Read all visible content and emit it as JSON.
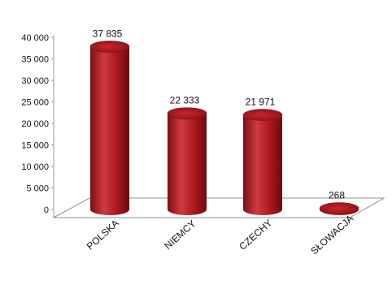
{
  "chart_data": {
    "type": "bar",
    "title": "",
    "xlabel": "",
    "ylabel": "",
    "categories": [
      "POLSKA",
      "NIEMCY",
      "CZECHY",
      "SŁOWACJA"
    ],
    "values": [
      37835,
      22333,
      21971,
      268
    ],
    "data_labels": [
      "37 835",
      "22 333",
      "21 971",
      "268"
    ],
    "yticks": [
      "0",
      "5 000",
      "10 000",
      "15 000",
      "20 000",
      "25 000",
      "30 000",
      "35 000",
      "40 000"
    ],
    "ylim": [
      0,
      40000
    ],
    "grid": false,
    "legend": "none",
    "bar_color": "#b01b22",
    "bar_highlight": "#d84048",
    "bar_shadow": "#6e0d12",
    "floor_color": "#ffffff",
    "floor_stroke": "#8f8f8f"
  }
}
